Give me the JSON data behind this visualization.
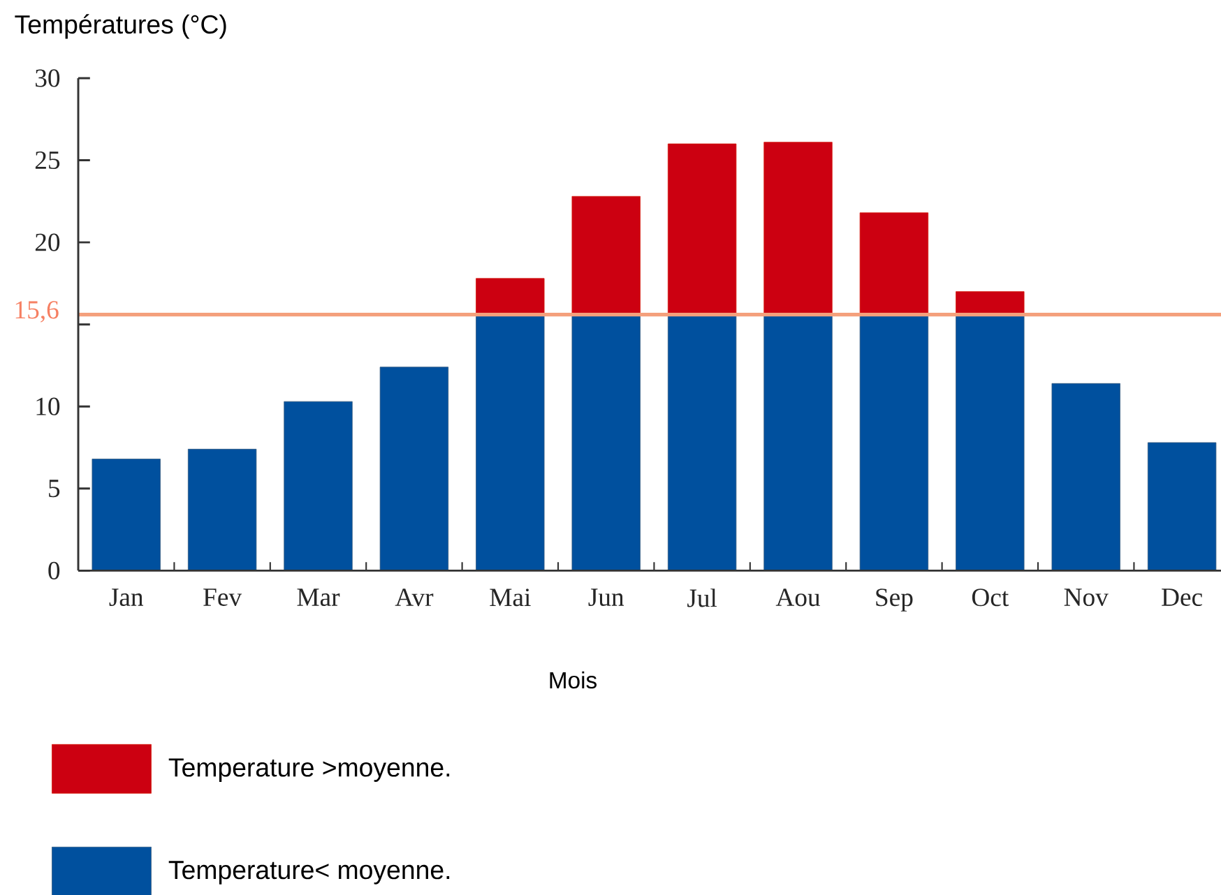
{
  "chart_data": {
    "type": "bar",
    "ylabel": "Températures (°C)",
    "xlabel": "Mois",
    "categories": [
      "Jan",
      "Fev",
      "Mar",
      "Avr",
      "Mai",
      "Jun",
      "Jul",
      "Aou",
      "Sep",
      "Oct",
      "Nov",
      "Dec"
    ],
    "series": [
      {
        "name": "Temperature< moyenne.",
        "color": "#00509e",
        "values": [
          6.8,
          7.4,
          10.3,
          12.4,
          15.6,
          15.6,
          15.6,
          15.6,
          15.6,
          15.6,
          11.4,
          7.8
        ]
      },
      {
        "name": "Temperature >moyenne.",
        "color": "#cc0011",
        "values": [
          null,
          null,
          null,
          null,
          2.2,
          7.2,
          10.4,
          10.5,
          6.2,
          1.4,
          null,
          null
        ]
      }
    ],
    "stacked": true,
    "ylim": [
      0,
      30
    ],
    "yticks": [
      0,
      5,
      10,
      {
        "value": 15,
        "label": null
      },
      20,
      25,
      30
    ],
    "ref_lines": [
      {
        "axis": "y",
        "value": 15.6,
        "label": "15,6",
        "color": "#f4a07c"
      }
    ],
    "legend": "bottom left"
  }
}
